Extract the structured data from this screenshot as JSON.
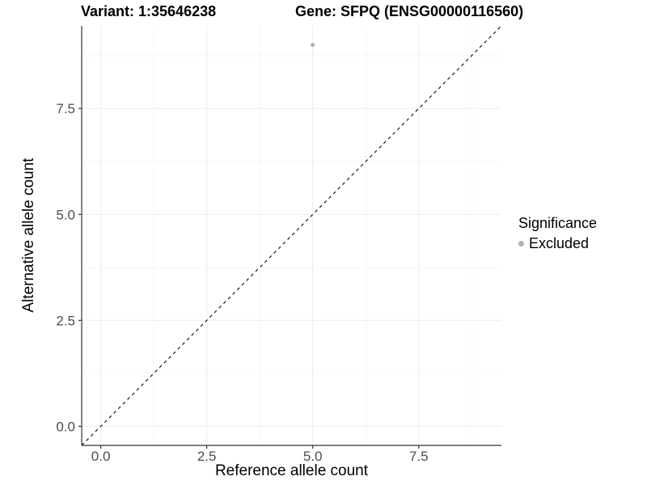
{
  "chart_data": {
    "type": "scatter",
    "titles": {
      "left": "Variant: 1:35646238",
      "right": "Gene: SFPQ (ENSG00000116560)"
    },
    "xlabel": "Reference allele count",
    "ylabel": "Alternative allele count",
    "xlim": [
      -0.45,
      9.45
    ],
    "ylim": [
      -0.45,
      9.45
    ],
    "major_ticks": [
      0,
      2.5,
      5,
      7.5
    ],
    "tick_labels": [
      "0.0",
      "2.5",
      "5.0",
      "7.5"
    ],
    "minor_ticks": [
      1.25,
      3.75,
      6.25,
      8.75
    ],
    "grid": true,
    "series": [
      {
        "name": "Excluded",
        "color": "#b3b3b3",
        "points": [
          {
            "x": 5,
            "y": 9
          }
        ]
      }
    ],
    "abline": {
      "slope": 1,
      "intercept": 0,
      "style": "dashed",
      "color": "#1a1a1a"
    },
    "legend": {
      "title": "Significance",
      "position": "right",
      "items": [
        {
          "label": "Excluded",
          "color": "#b3b3b3"
        }
      ]
    },
    "colors": {
      "background": "#ffffff",
      "grid_major": "#ececec",
      "grid_minor": "#f6f6f6",
      "axis_line": "#333333",
      "tick_text": "#4d4d4d"
    }
  }
}
